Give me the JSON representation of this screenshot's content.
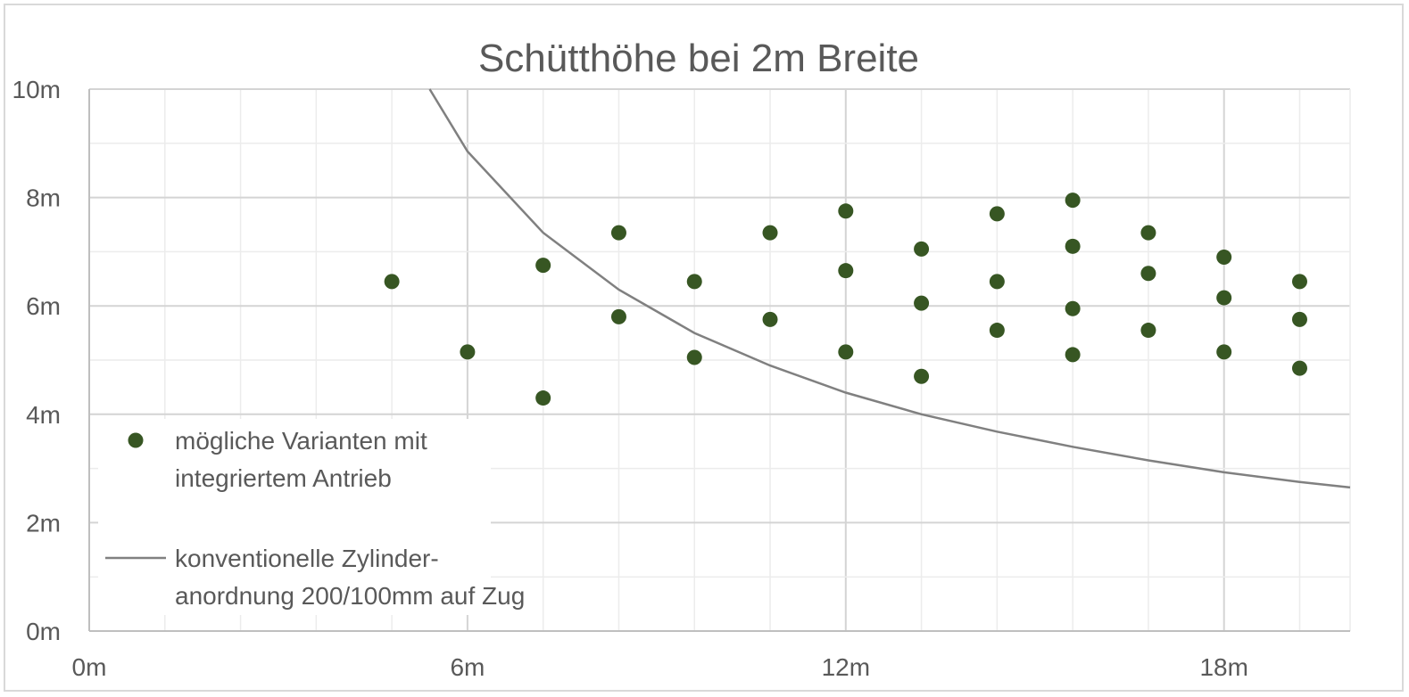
{
  "chart_data": {
    "type": "scatter",
    "title": "Schütthöhe bei 2m Breite",
    "xlabel": "",
    "ylabel": "",
    "xlim": [
      0,
      20
    ],
    "ylim": [
      0,
      10
    ],
    "x_ticks": [
      {
        "value": 0,
        "label": "0m"
      },
      {
        "value": 6,
        "label": "6m"
      },
      {
        "value": 12,
        "label": "12m"
      },
      {
        "value": 18,
        "label": "18m"
      }
    ],
    "y_ticks": [
      {
        "value": 0,
        "label": "0m"
      },
      {
        "value": 2,
        "label": "2m"
      },
      {
        "value": 4,
        "label": "4m"
      },
      {
        "value": 6,
        "label": "6m"
      },
      {
        "value": 8,
        "label": "8m"
      },
      {
        "value": 10,
        "label": "10m"
      }
    ],
    "grid": true,
    "legend_position": "left",
    "series": [
      {
        "name": "mögliche Varianten mit integriertem Antrieb",
        "legend_lines": [
          "mögliche Varianten mit",
          "integriertem Antrieb"
        ],
        "type": "scatter",
        "color": "#375623",
        "points": [
          [
            4.8,
            6.45
          ],
          [
            6.0,
            5.15
          ],
          [
            7.2,
            6.75
          ],
          [
            7.2,
            4.3
          ],
          [
            8.4,
            7.35
          ],
          [
            8.4,
            5.8
          ],
          [
            9.6,
            6.45
          ],
          [
            9.6,
            5.05
          ],
          [
            10.8,
            7.35
          ],
          [
            10.8,
            5.75
          ],
          [
            12.0,
            7.75
          ],
          [
            12.0,
            6.65
          ],
          [
            12.0,
            5.15
          ],
          [
            13.2,
            7.05
          ],
          [
            13.2,
            6.05
          ],
          [
            13.2,
            4.7
          ],
          [
            14.4,
            7.7
          ],
          [
            14.4,
            6.45
          ],
          [
            14.4,
            5.55
          ],
          [
            15.6,
            7.95
          ],
          [
            15.6,
            7.1
          ],
          [
            15.6,
            5.95
          ],
          [
            15.6,
            5.1
          ],
          [
            16.8,
            7.35
          ],
          [
            16.8,
            6.6
          ],
          [
            16.8,
            5.55
          ],
          [
            18.0,
            6.9
          ],
          [
            18.0,
            6.15
          ],
          [
            18.0,
            5.15
          ],
          [
            19.2,
            6.45
          ],
          [
            19.2,
            5.75
          ],
          [
            19.2,
            4.85
          ]
        ]
      },
      {
        "name": "konventionelle Zylinderanordnung 200/100mm auf Zug",
        "legend_lines": [
          "konventionelle Zylinder-",
          "anordnung 200/100mm auf Zug"
        ],
        "type": "line",
        "color": "#808080",
        "points": [
          [
            5.4,
            10.0
          ],
          [
            6.0,
            8.85
          ],
          [
            7.2,
            7.35
          ],
          [
            8.4,
            6.3
          ],
          [
            9.6,
            5.5
          ],
          [
            10.8,
            4.9
          ],
          [
            12.0,
            4.4
          ],
          [
            13.2,
            4.0
          ],
          [
            14.4,
            3.68
          ],
          [
            15.6,
            3.4
          ],
          [
            16.8,
            3.15
          ],
          [
            18.0,
            2.93
          ],
          [
            19.2,
            2.75
          ],
          [
            20.0,
            2.65
          ]
        ]
      }
    ]
  }
}
